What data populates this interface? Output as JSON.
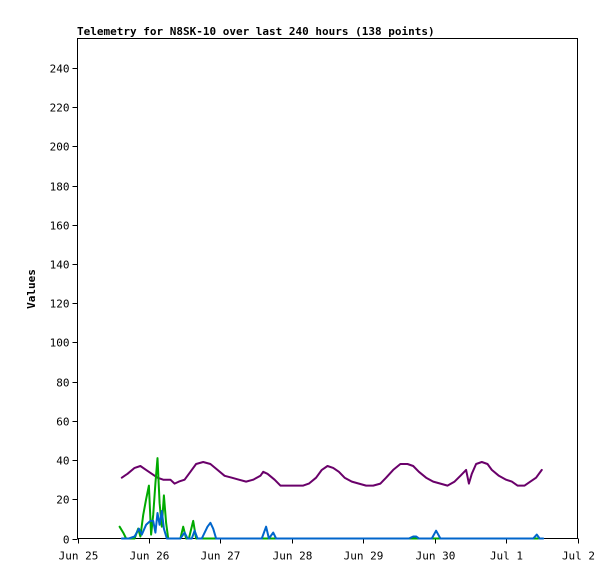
{
  "chart_data": {
    "type": "line",
    "title": "Telemetry for N8SK-10 over last 240 hours (138 points)",
    "ylabel": "Values",
    "xlabel": "",
    "x_ticks": [
      {
        "label": "Jun 25",
        "day": 0
      },
      {
        "label": "Jun 26",
        "day": 1
      },
      {
        "label": "Jun 27",
        "day": 2
      },
      {
        "label": "Jun 28",
        "day": 3
      },
      {
        "label": "Jun 29",
        "day": 4
      },
      {
        "label": "Jun 30",
        "day": 5
      },
      {
        "label": "Jul 1",
        "day": 6
      },
      {
        "label": "Jul 2",
        "day": 7
      }
    ],
    "xlim": [
      0,
      7
    ],
    "ylim": [
      0,
      255
    ],
    "y_ticks": [
      0,
      20,
      40,
      60,
      80,
      100,
      120,
      140,
      160,
      180,
      200,
      220,
      240
    ],
    "grid": false,
    "series": [
      {
        "color": "#6a006a",
        "points": [
          [
            0.62,
            31
          ],
          [
            0.7,
            33
          ],
          [
            0.8,
            36
          ],
          [
            0.88,
            37
          ],
          [
            0.96,
            35
          ],
          [
            1.04,
            33
          ],
          [
            1.12,
            31
          ],
          [
            1.2,
            30
          ],
          [
            1.3,
            30
          ],
          [
            1.36,
            28
          ],
          [
            1.42,
            29
          ],
          [
            1.5,
            30
          ],
          [
            1.58,
            34
          ],
          [
            1.66,
            38
          ],
          [
            1.76,
            39
          ],
          [
            1.86,
            38
          ],
          [
            1.96,
            35
          ],
          [
            2.06,
            32
          ],
          [
            2.16,
            31
          ],
          [
            2.26,
            30
          ],
          [
            2.36,
            29
          ],
          [
            2.46,
            30
          ],
          [
            2.56,
            32
          ],
          [
            2.6,
            34
          ],
          [
            2.66,
            33
          ],
          [
            2.76,
            30
          ],
          [
            2.84,
            27
          ],
          [
            2.96,
            27
          ],
          [
            3.06,
            27
          ],
          [
            3.16,
            27
          ],
          [
            3.24,
            28
          ],
          [
            3.34,
            31
          ],
          [
            3.42,
            35
          ],
          [
            3.5,
            37
          ],
          [
            3.58,
            36
          ],
          [
            3.66,
            34
          ],
          [
            3.74,
            31
          ],
          [
            3.84,
            29
          ],
          [
            3.94,
            28
          ],
          [
            4.04,
            27
          ],
          [
            4.14,
            27
          ],
          [
            4.24,
            28
          ],
          [
            4.32,
            31
          ],
          [
            4.42,
            35
          ],
          [
            4.52,
            38
          ],
          [
            4.62,
            38
          ],
          [
            4.7,
            37
          ],
          [
            4.78,
            34
          ],
          [
            4.88,
            31
          ],
          [
            4.98,
            29
          ],
          [
            5.08,
            28
          ],
          [
            5.18,
            27
          ],
          [
            5.28,
            29
          ],
          [
            5.36,
            32
          ],
          [
            5.44,
            35
          ],
          [
            5.48,
            28
          ],
          [
            5.52,
            33
          ],
          [
            5.58,
            38
          ],
          [
            5.66,
            39
          ],
          [
            5.74,
            38
          ],
          [
            5.8,
            35
          ],
          [
            5.9,
            32
          ],
          [
            6.0,
            30
          ],
          [
            6.08,
            29
          ],
          [
            6.16,
            27
          ],
          [
            6.26,
            27
          ],
          [
            6.34,
            29
          ],
          [
            6.42,
            31
          ],
          [
            6.5,
            35
          ]
        ]
      },
      {
        "color": "#00aa00",
        "points": [
          [
            0.59,
            6
          ],
          [
            0.64,
            3
          ],
          [
            0.68,
            0
          ],
          [
            0.74,
            0
          ],
          [
            0.8,
            0
          ],
          [
            0.85,
            5
          ],
          [
            0.88,
            1
          ],
          [
            0.92,
            12
          ],
          [
            0.96,
            20
          ],
          [
            1.0,
            27
          ],
          [
            1.03,
            2
          ],
          [
            1.06,
            12
          ],
          [
            1.09,
            28
          ],
          [
            1.12,
            41
          ],
          [
            1.15,
            18
          ],
          [
            1.18,
            6
          ],
          [
            1.21,
            22
          ],
          [
            1.24,
            8
          ],
          [
            1.27,
            0
          ],
          [
            1.36,
            0
          ],
          [
            1.44,
            0
          ],
          [
            1.48,
            6
          ],
          [
            1.52,
            0
          ],
          [
            1.56,
            0
          ],
          [
            1.62,
            9
          ],
          [
            1.66,
            0
          ],
          [
            1.74,
            0
          ],
          [
            2.6,
            0
          ],
          [
            6.45,
            0
          ]
        ]
      },
      {
        "color": "#0066cc",
        "points": [
          [
            0.62,
            0
          ],
          [
            0.72,
            0
          ],
          [
            0.8,
            1
          ],
          [
            0.86,
            5
          ],
          [
            0.9,
            2
          ],
          [
            0.96,
            7
          ],
          [
            1.02,
            9
          ],
          [
            1.06,
            9
          ],
          [
            1.09,
            3
          ],
          [
            1.12,
            13
          ],
          [
            1.15,
            7
          ],
          [
            1.18,
            14
          ],
          [
            1.21,
            5
          ],
          [
            1.25,
            0
          ],
          [
            1.3,
            0
          ],
          [
            1.36,
            0
          ],
          [
            1.44,
            0
          ],
          [
            1.5,
            3
          ],
          [
            1.54,
            0
          ],
          [
            1.6,
            0
          ],
          [
            1.64,
            4
          ],
          [
            1.68,
            0
          ],
          [
            1.74,
            0
          ],
          [
            1.82,
            6
          ],
          [
            1.86,
            8
          ],
          [
            1.9,
            5
          ],
          [
            1.94,
            0
          ],
          [
            2.5,
            0
          ],
          [
            2.58,
            0
          ],
          [
            2.64,
            6
          ],
          [
            2.68,
            0
          ],
          [
            2.74,
            3
          ],
          [
            2.78,
            0
          ],
          [
            2.9,
            0
          ],
          [
            3.8,
            0
          ],
          [
            4.64,
            0
          ],
          [
            4.7,
            1
          ],
          [
            4.74,
            1
          ],
          [
            4.78,
            0
          ],
          [
            4.96,
            0
          ],
          [
            5.02,
            4
          ],
          [
            5.08,
            0
          ],
          [
            5.5,
            0
          ],
          [
            6.38,
            0
          ],
          [
            6.43,
            2
          ],
          [
            6.47,
            0
          ],
          [
            6.52,
            0
          ]
        ]
      }
    ]
  }
}
